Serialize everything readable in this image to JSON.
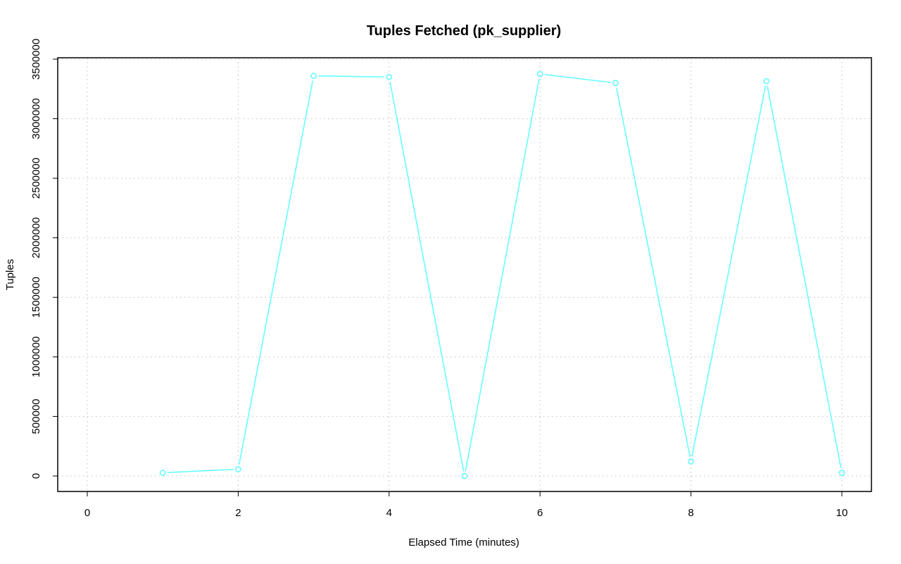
{
  "chart_data": {
    "type": "line",
    "title": "Tuples Fetched (pk_supplier)",
    "xlabel": "Elapsed Time (minutes)",
    "ylabel": "Tuples",
    "xlim": [
      0,
      10
    ],
    "ylim": [
      0,
      3500000
    ],
    "x_ticks": [
      0,
      2,
      4,
      6,
      8,
      10
    ],
    "y_ticks": [
      0,
      500000,
      1000000,
      1500000,
      2000000,
      2500000,
      3000000,
      3500000
    ],
    "grid": true,
    "series": [
      {
        "color": "#66FFFF",
        "marker": "circle",
        "x": [
          1,
          2,
          3,
          4,
          5,
          6,
          7,
          8,
          9,
          10
        ],
        "y": [
          27000,
          57000,
          3360000,
          3350000,
          0,
          3375000,
          3300000,
          122000,
          3315000,
          27000
        ]
      }
    ]
  }
}
